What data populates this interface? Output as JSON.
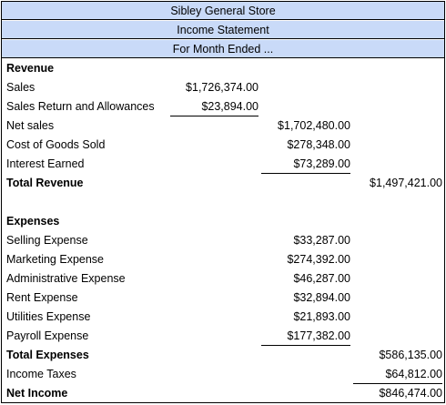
{
  "header": {
    "company": "Sibley General Store",
    "statement": "Income Statement",
    "period": "For Month Ended ..."
  },
  "revenue": {
    "heading": "Revenue",
    "sales_label": "Sales",
    "sales_value": "$1,726,374.00",
    "returns_label": "Sales Return and Allowances",
    "returns_value": "$23,894.00",
    "net_sales_label": "Net sales",
    "net_sales_value": "$1,702,480.00",
    "cogs_label": "Cost of Goods Sold",
    "cogs_value": "$278,348.00",
    "interest_label": "Interest Earned",
    "interest_value": "$73,289.00",
    "total_label": "Total Revenue",
    "total_value": "$1,497,421.00"
  },
  "expenses": {
    "heading": "Expenses",
    "items": [
      {
        "label": "Selling Expense",
        "value": "$33,287.00"
      },
      {
        "label": "Marketing Expense",
        "value": "$274,392.00"
      },
      {
        "label": "Administrative Expense",
        "value": "$46,287.00"
      },
      {
        "label": "Rent Expense",
        "value": "$32,894.00"
      },
      {
        "label": "Utilities Expense",
        "value": "$21,893.00"
      },
      {
        "label": "Payroll Expense",
        "value": "$177,382.00"
      }
    ],
    "total_label": "Total Expenses",
    "total_value": "$586,135.00"
  },
  "taxes": {
    "label": "Income Taxes",
    "value": "$64,812.00"
  },
  "net_income": {
    "label": "Net Income",
    "value": "$846,474.00"
  }
}
